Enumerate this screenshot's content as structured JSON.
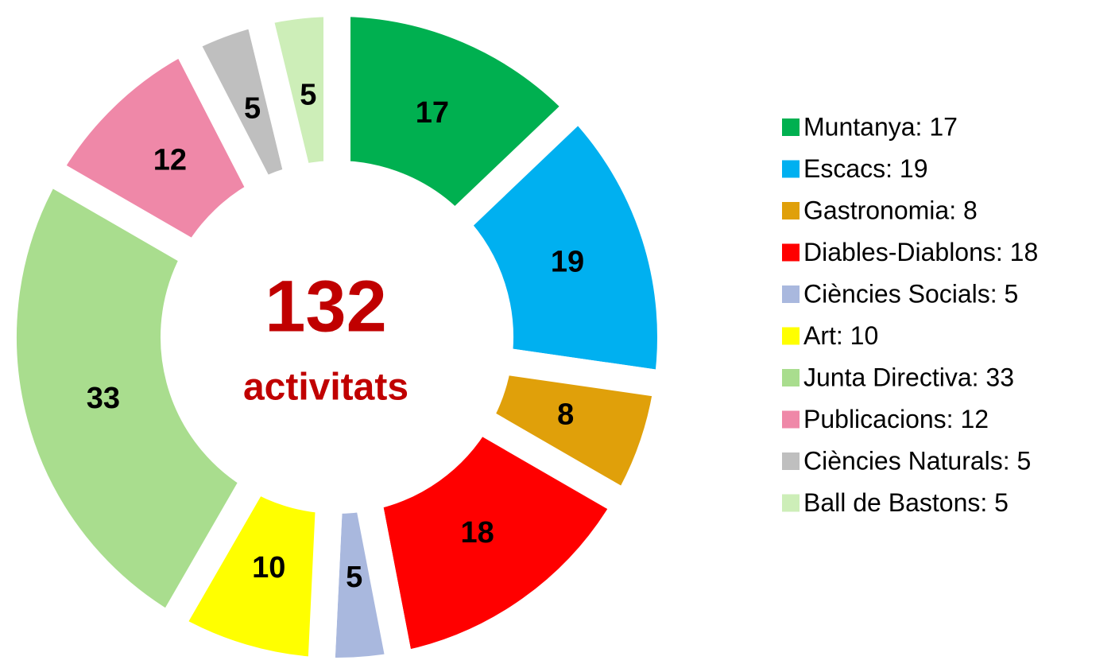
{
  "chart_data": {
    "type": "donut",
    "categories": [
      "Muntanya",
      "Escacs",
      "Gastronomia",
      "Diables-Diablons",
      "Ciències Socials",
      "Art",
      "Junta Directiva",
      "Publicacions",
      "Ciències Naturals",
      "Ball de Bastons"
    ],
    "values": [
      17,
      19,
      8,
      18,
      5,
      10,
      33,
      12,
      5,
      5
    ],
    "colors": [
      "#00b050",
      "#00b0f0",
      "#e0a00a",
      "#ff0000",
      "#a9b8de",
      "#ffff00",
      "#a9dd8e",
      "#ef88a8",
      "#bfbfbf",
      "#cdeeb8"
    ],
    "legend_labels": [
      "Muntanya: 17",
      "Escacs: 19",
      "Gastronomia: 8",
      "Diables-Diablons: 18",
      "Ciències Socials: 5",
      "Art: 10",
      "Junta Directiva: 33",
      "Publicacions: 12",
      "Ciències Naturals: 5",
      "Ball de Bastons: 5"
    ],
    "center_value": 132,
    "center_label": "activitats",
    "legend": "right"
  }
}
